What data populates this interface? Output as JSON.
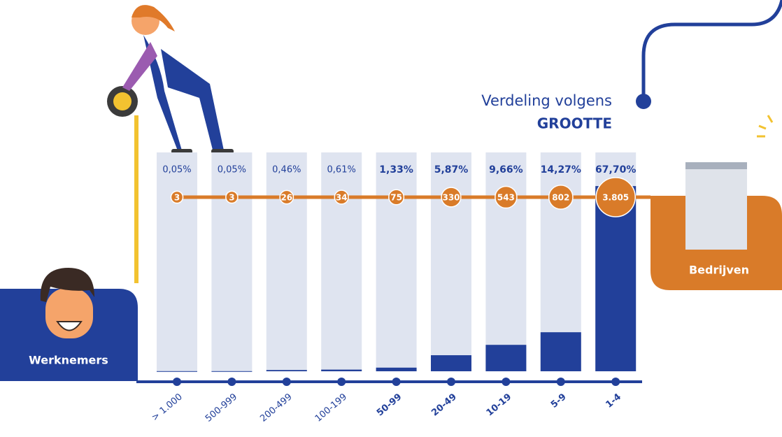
{
  "chart_data": {
    "type": "bar",
    "title": "Verdeling volgens",
    "title_emphasis": "GROOTTE",
    "x_label": "Werknemers",
    "series_label": "Bedrijven",
    "categories": [
      "> 1.000",
      "500-999",
      "200-499",
      "100-199",
      "50-99",
      "20-49",
      "10-19",
      "5-9",
      "1-4"
    ],
    "ylim": [
      0,
      80
    ],
    "series": [
      {
        "color": "#22409a",
        "values": [
          0.05,
          0.05,
          0.46,
          0.61,
          1.33,
          5.87,
          9.66,
          14.27,
          67.7
        ],
        "value_labels": [
          "0,05%",
          "0,05%",
          "0,46%",
          "0,61%",
          "1,33%",
          "5,87%",
          "9,66%",
          "14,27%",
          "67,70%"
        ]
      },
      {
        "color": "#d97b29",
        "values": [
          3,
          3,
          26,
          34,
          75,
          330,
          543,
          802,
          3805
        ],
        "value_labels": [
          "3",
          "3",
          "26",
          "34",
          "75",
          "330",
          "543",
          "802",
          "3.805"
        ]
      }
    ]
  }
}
